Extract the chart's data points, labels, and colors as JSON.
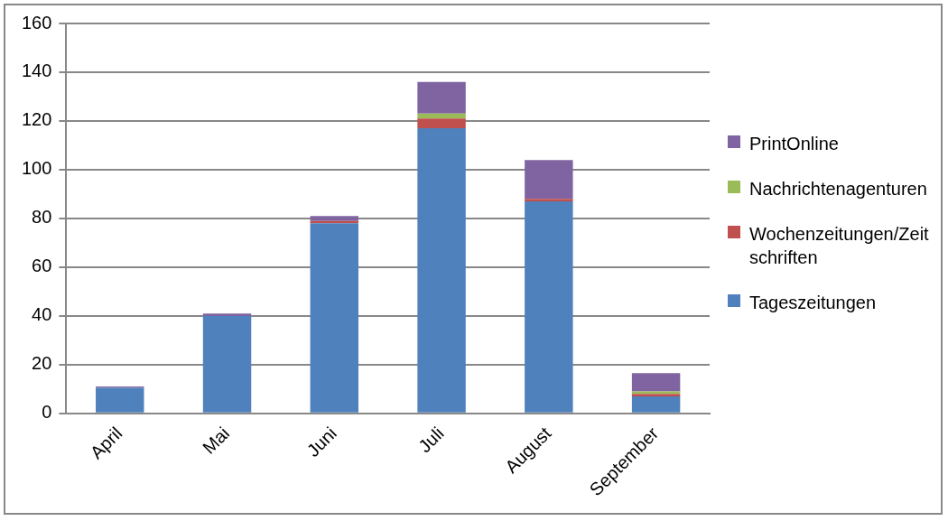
{
  "chart_data": {
    "type": "bar",
    "stacked": true,
    "categories": [
      "April",
      "Mai",
      "Juni",
      "Juli",
      "August",
      "September"
    ],
    "series": [
      {
        "name": "Tageszeitungen",
        "color": "#4f81bd",
        "values": [
          10.5,
          40,
          78,
          117,
          87,
          7
        ]
      },
      {
        "name": "Wochenzeitungen/Zeitschriften",
        "color": "#c0504d",
        "values": [
          0,
          0,
          1,
          4,
          1,
          1
        ]
      },
      {
        "name": "Nachrichtenagenturen",
        "color": "#9bbb59",
        "values": [
          0,
          0,
          0,
          2,
          0,
          1
        ]
      },
      {
        "name": "PrintOnline",
        "color": "#8064a2",
        "values": [
          0.6,
          1,
          2,
          13,
          16,
          7.5
        ]
      }
    ],
    "ylim": [
      0,
      160
    ],
    "yticks": [
      0,
      20,
      40,
      60,
      80,
      100,
      120,
      140,
      160
    ],
    "grid": "y",
    "legend": "right"
  }
}
